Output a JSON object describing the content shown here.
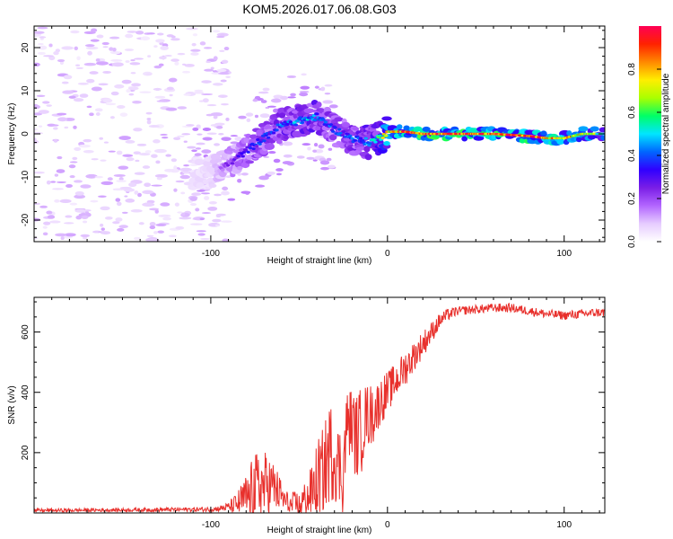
{
  "title": "KOM5.2026.017.06.08.G03",
  "colors": {
    "snr_line": "#e8302c",
    "axis": "#000000",
    "colormap": [
      "#ffffff",
      "#e6ccff",
      "#b366ff",
      "#7a1ee6",
      "#3000ff",
      "#0066ff",
      "#00e5ff",
      "#00ff66",
      "#aaff00",
      "#ffee00",
      "#ff8800",
      "#ff2200",
      "#ff0055"
    ]
  },
  "chart_data": [
    {
      "type": "heatmap",
      "name": "spectrogram",
      "xlabel": "Height of straight line (km)",
      "ylabel": "Frequency (Hz)",
      "xlim": [
        -200,
        123
      ],
      "ylim": [
        -25,
        25
      ],
      "xticks": [
        -100,
        0,
        100
      ],
      "xtick_labels": [
        "-100",
        "0",
        "100"
      ],
      "yticks": [
        -20,
        -10,
        0,
        10,
        20
      ],
      "ytick_labels": [
        "-20",
        "-10",
        "0",
        "10",
        "20"
      ],
      "ridge": {
        "x": [
          -200,
          -175,
          -150,
          -125,
          -110,
          -100,
          -90,
          -80,
          -70,
          -60,
          -50,
          -40,
          -30,
          -20,
          -10,
          -5,
          0,
          10,
          20,
          40,
          60,
          80,
          90,
          100,
          110,
          123
        ],
        "freq": [
          -5,
          -6,
          -7,
          -8,
          -9,
          -9,
          -7,
          -4,
          -1,
          2,
          3,
          4,
          1,
          -1,
          -2,
          -1,
          0.5,
          0.5,
          0,
          0,
          0,
          -0.5,
          -1,
          -1,
          0,
          0
        ],
        "amp": [
          0.04,
          0.05,
          0.06,
          0.07,
          0.09,
          0.12,
          0.22,
          0.3,
          0.35,
          0.4,
          0.45,
          0.42,
          0.35,
          0.38,
          0.45,
          0.55,
          0.75,
          0.85,
          0.9,
          0.92,
          0.9,
          0.88,
          0.85,
          0.8,
          0.7,
          0.6
        ]
      }
    },
    {
      "type": "colorbar",
      "name": "amplitude-colorbar",
      "label": "Normalized spectral amplitude",
      "range": [
        0,
        1
      ],
      "ticks": [
        0,
        0.2,
        0.4,
        0.6,
        0.8
      ],
      "tick_labels": [
        "0.0",
        "0.2",
        "0.4",
        "0.6",
        "0.8"
      ]
    },
    {
      "type": "line",
      "name": "snr-series",
      "xlabel": "Height of straight line (km)",
      "ylabel": "SNR (v/v)",
      "xlim": [
        -200,
        123
      ],
      "ylim": [
        0,
        715
      ],
      "xticks": [
        -100,
        0,
        100
      ],
      "xtick_labels": [
        "-100",
        "0",
        "100"
      ],
      "yticks": [
        200,
        400,
        600
      ],
      "ytick_labels": [
        "200",
        "400",
        "600"
      ],
      "envelope": {
        "x": [
          -200,
          -150,
          -100,
          -95,
          -90,
          -85,
          -80,
          -75,
          -70,
          -65,
          -62,
          -58,
          -55,
          -50,
          -45,
          -42,
          -40,
          -38,
          -35,
          -33,
          -30,
          -28,
          -25,
          -23,
          -20,
          -18,
          -15,
          -12,
          -10,
          -8,
          -5,
          -3,
          0,
          5,
          10,
          15,
          20,
          25,
          30,
          35,
          40,
          50,
          60,
          70,
          80,
          90,
          100,
          110,
          120,
          123
        ],
        "base": [
          8,
          10,
          12,
          15,
          20,
          30,
          50,
          70,
          90,
          90,
          70,
          40,
          25,
          30,
          50,
          80,
          120,
          120,
          160,
          200,
          200,
          160,
          140,
          300,
          300,
          250,
          270,
          330,
          320,
          330,
          360,
          380,
          400,
          440,
          480,
          520,
          560,
          600,
          640,
          660,
          670,
          675,
          680,
          680,
          670,
          660,
          655,
          660,
          665,
          665
        ],
        "amp": [
          6,
          6,
          8,
          10,
          15,
          40,
          80,
          130,
          120,
          90,
          70,
          40,
          40,
          50,
          70,
          100,
          140,
          130,
          160,
          170,
          160,
          140,
          150,
          110,
          120,
          140,
          150,
          100,
          110,
          100,
          80,
          80,
          70,
          60,
          60,
          50,
          45,
          35,
          25,
          20,
          15,
          15,
          15,
          15,
          15,
          15,
          15,
          15,
          15,
          15
        ]
      }
    }
  ]
}
